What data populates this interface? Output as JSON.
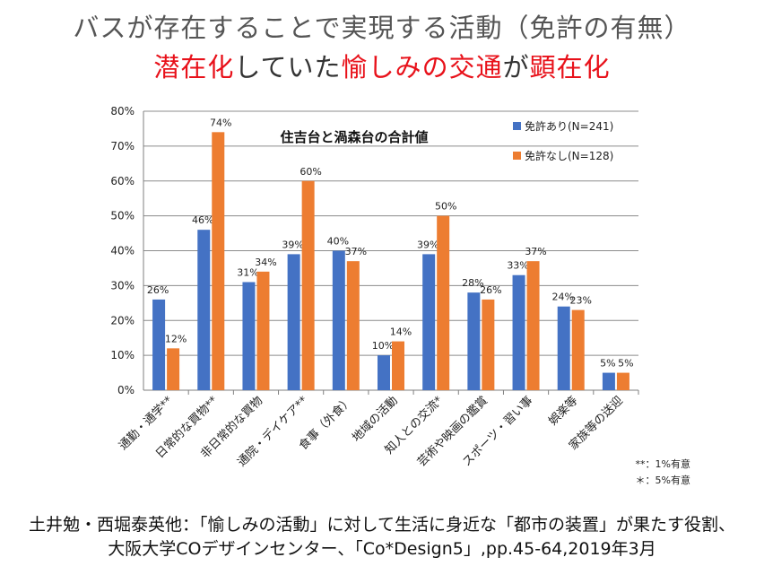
{
  "header": {
    "title_line1": "バスが存在することで実現する活動（免許の有無）",
    "title_line2_parts": [
      {
        "text": "潜在化",
        "color": "#e8111a"
      },
      {
        "text": "していた",
        "color": "#333333"
      },
      {
        "text": "愉しみ",
        "color": "#e8111a"
      },
      {
        "text": "の交通",
        "color": "#e8111a"
      },
      {
        "text": "が",
        "color": "#333333"
      },
      {
        "text": "顕在化",
        "color": "#e8111a"
      }
    ]
  },
  "chart_data": {
    "type": "bar",
    "title": "住吉台と渦森台の合計値",
    "categories": [
      "通勤・通学**",
      "日常的な買物**",
      "非日常的な買物",
      "通院・デイケア**",
      "食事（外食）",
      "地域の活動",
      "知人との交流*",
      "芸術や映画の鑑賞",
      "スポーツ・習い事",
      "娯楽等",
      "家族等の送迎"
    ],
    "series": [
      {
        "name": "免許あり(N=241)",
        "color": "#4472c4",
        "values": [
          26,
          46,
          31,
          39,
          40,
          10,
          39,
          28,
          33,
          24,
          5
        ],
        "labels": [
          "26%",
          "46%",
          "31%",
          "39%",
          "40%",
          "10%",
          "39%",
          "28%",
          "33%",
          "24%",
          "5%"
        ]
      },
      {
        "name": "免許なし(N=128)",
        "color": "#ed7d31",
        "values": [
          12,
          74,
          34,
          60,
          37,
          14,
          50,
          26,
          37,
          23,
          5
        ],
        "labels": [
          "12%",
          "74%",
          "34%",
          "60%",
          "37%",
          "14%",
          "50%",
          "26%",
          "37%",
          "23%",
          "5%"
        ]
      }
    ],
    "ylim": [
      0,
      80
    ],
    "yticks": [
      "0%",
      "10%",
      "20%",
      "30%",
      "40%",
      "50%",
      "60%",
      "70%",
      "80%"
    ],
    "grid": true,
    "legend": "top-right",
    "significance_notes": [
      "**：1%有意",
      "＊：5%有意"
    ]
  },
  "footer": {
    "line1": "土井勉・西堀泰英他：「愉しみの活動」に対して生活に身近な「都市の装置」が果たす役割、",
    "line2": "大阪大学COデザインセンター、「Co*Design5」,pp.45-64,2019年3月"
  }
}
